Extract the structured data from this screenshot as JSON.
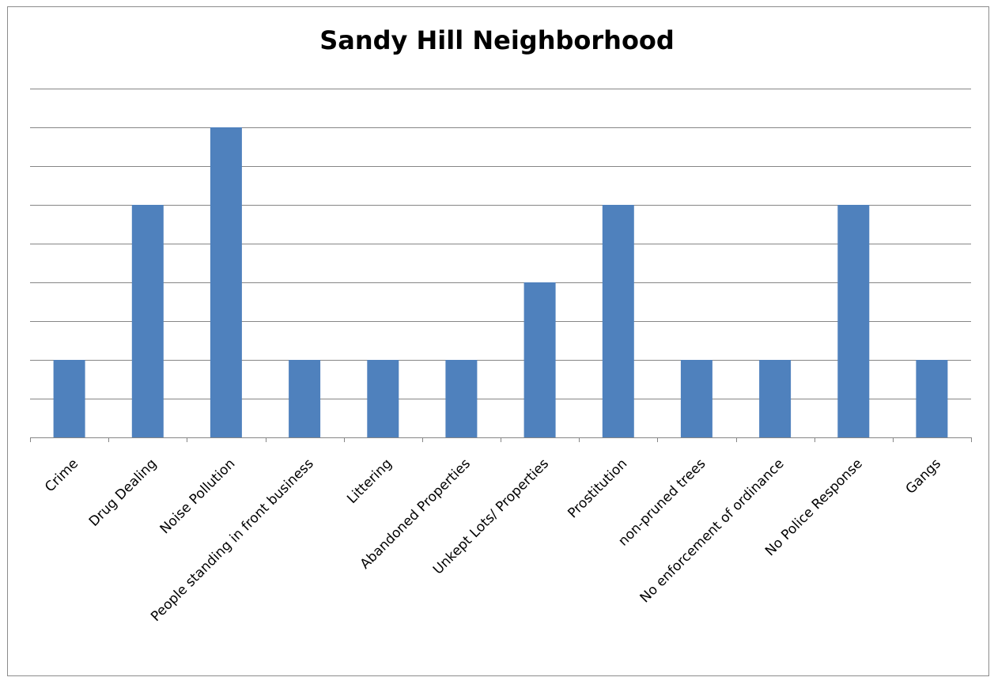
{
  "chart_data": {
    "type": "bar",
    "title": "Sandy Hill Neighborhood",
    "xlabel": "",
    "ylabel": "",
    "categories": [
      "Crime",
      "Drug Dealing",
      "Noise Pollution",
      "People standing in front business",
      "Littering",
      "Abandoned Properties",
      "Unkept Lots/ Properties",
      "Prostitution",
      "non-pruned trees",
      "No enforcement of ordinance",
      "No Police Response",
      "Gangs"
    ],
    "values": [
      1,
      3,
      4,
      1,
      1,
      1,
      2,
      3,
      1,
      1,
      3,
      1
    ],
    "ylim": [
      0,
      4.5
    ],
    "grid": true,
    "legend": "none",
    "y_tick_labels_shown": false,
    "colors": {
      "bar": "#4f81bd",
      "grid": "#868686",
      "axis": "#868686"
    }
  }
}
